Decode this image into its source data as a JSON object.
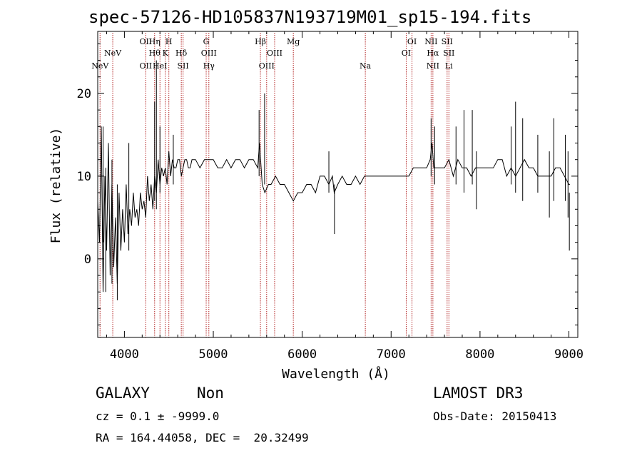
{
  "title": "spec-57126-HD105837N193719M01_sp15-194.fits",
  "info": {
    "class": "GALAXY",
    "subclass": "Non",
    "cz": "cz = 0.1 ± -9999.0",
    "radec": "RA = 164.44058, DEC =  20.32499",
    "survey": "LAMOST DR3",
    "obsdate": "Obs-Date: 20150413"
  },
  "colors": {
    "spectrum": "#000000",
    "line_marker": "#b22222",
    "axes": "#000000"
  },
  "chart_data": {
    "type": "line",
    "xlabel": "Wavelength (Å)",
    "ylabel": "Flux (relative)",
    "xlim": [
      3700,
      9100
    ],
    "ylim": [
      -9.5,
      27.5
    ],
    "xticks": [
      4000,
      5000,
      6000,
      7000,
      8000,
      9000
    ],
    "yticks": [
      0,
      10,
      20
    ],
    "grid": false,
    "series": [
      {
        "values_x": [
          3700,
          3720,
          3740,
          3760,
          3780,
          3800,
          3820,
          3840,
          3860,
          3880,
          3900,
          3920,
          3940,
          3960,
          3980,
          4000,
          4020,
          4040,
          4060,
          4080,
          4100,
          4120,
          4140,
          4160,
          4180,
          4200,
          4220,
          4240,
          4260,
          4280,
          4300,
          4320,
          4340,
          4360,
          4380,
          4400,
          4420,
          4440,
          4460,
          4480,
          4500,
          4520,
          4540,
          4560,
          4580,
          4600,
          4620,
          4640,
          4660,
          4680,
          4700,
          4720,
          4740,
          4760,
          4780,
          4800,
          4850,
          4900,
          4950,
          5000,
          5050,
          5100,
          5150,
          5200,
          5250,
          5300,
          5350,
          5400,
          5450,
          5500,
          5520,
          5550,
          5580,
          5620,
          5650,
          5700,
          5750,
          5800,
          5850,
          5900,
          5950,
          6000,
          6050,
          6100,
          6150,
          6200,
          6250,
          6300,
          6340,
          6360,
          6400,
          6450,
          6500,
          6550,
          6600,
          6650,
          6700,
          6750,
          6800,
          6850,
          6900,
          6950,
          7000,
          7050,
          7100,
          7150,
          7200,
          7250,
          7300,
          7350,
          7400,
          7440,
          7460,
          7480,
          7500,
          7550,
          7600,
          7650,
          7700,
          7750,
          7800,
          7850,
          7900,
          7950,
          8000,
          8050,
          8100,
          8150,
          8200,
          8250,
          8300,
          8350,
          8400,
          8450,
          8500,
          8550,
          8600,
          8650,
          8700,
          8750,
          8800,
          8850,
          8900,
          8950,
          9000,
          9010
        ],
        "values_y": [
          7,
          2,
          16,
          -4,
          10,
          1,
          14,
          -2,
          9,
          -1,
          5,
          -3,
          8,
          1,
          6,
          2,
          9,
          3,
          6,
          4,
          8,
          5,
          6,
          4,
          8,
          6,
          7,
          5,
          10,
          7,
          9,
          6,
          10,
          8,
          12,
          9,
          11,
          10,
          11,
          9,
          13,
          10,
          12,
          11,
          11,
          12,
          12,
          10,
          11,
          12,
          12,
          11,
          11,
          12,
          12,
          12,
          11,
          12,
          12,
          12,
          11,
          11,
          12,
          11,
          12,
          12,
          11,
          12,
          12,
          11,
          14,
          9,
          8,
          9,
          9,
          10,
          9,
          9,
          8,
          7,
          8,
          8,
          9,
          9,
          8,
          10,
          10,
          9,
          10,
          8,
          9,
          10,
          9,
          9,
          10,
          9,
          10,
          10,
          10,
          10,
          10,
          10,
          10,
          10,
          10,
          10,
          10,
          11,
          11,
          11,
          11,
          12,
          14,
          11,
          11,
          11,
          11,
          12,
          10,
          12,
          11,
          11,
          10,
          11,
          11,
          11,
          11,
          11,
          12,
          12,
          10,
          11,
          10,
          11,
          12,
          11,
          11,
          10,
          10,
          10,
          10,
          11,
          11,
          10,
          9,
          9
        ]
      }
    ],
    "spike_lines": [
      {
        "x": 3760,
        "y0": 2,
        "y1": 16
      },
      {
        "x": 3790,
        "y0": -4,
        "y1": 11
      },
      {
        "x": 3860,
        "y0": -3,
        "y1": 12
      },
      {
        "x": 3920,
        "y0": -5,
        "y1": 9
      },
      {
        "x": 4050,
        "y0": 1,
        "y1": 14
      },
      {
        "x": 4340,
        "y0": 7,
        "y1": 19
      },
      {
        "x": 4360,
        "y0": 6,
        "y1": 24
      },
      {
        "x": 4400,
        "y0": 8,
        "y1": 16
      },
      {
        "x": 4550,
        "y0": 9,
        "y1": 15
      },
      {
        "x": 5515,
        "y0": 10,
        "y1": 18
      },
      {
        "x": 5577,
        "y0": 9,
        "y1": 20
      },
      {
        "x": 6300,
        "y0": 8,
        "y1": 13
      },
      {
        "x": 6363,
        "y0": 3,
        "y1": 9
      },
      {
        "x": 7450,
        "y0": 10,
        "y1": 17
      },
      {
        "x": 7490,
        "y0": 9,
        "y1": 16
      },
      {
        "x": 7730,
        "y0": 9,
        "y1": 16
      },
      {
        "x": 7820,
        "y0": 8,
        "y1": 18
      },
      {
        "x": 7913,
        "y0": 9,
        "y1": 18
      },
      {
        "x": 7960,
        "y0": 6,
        "y1": 13
      },
      {
        "x": 8350,
        "y0": 9,
        "y1": 16
      },
      {
        "x": 8400,
        "y0": 8,
        "y1": 19
      },
      {
        "x": 8480,
        "y0": 7,
        "y1": 17
      },
      {
        "x": 8650,
        "y0": 8,
        "y1": 15
      },
      {
        "x": 8780,
        "y0": 5,
        "y1": 13
      },
      {
        "x": 8830,
        "y0": 7,
        "y1": 17
      },
      {
        "x": 8960,
        "y0": 7,
        "y1": 15
      },
      {
        "x": 8990,
        "y0": 5,
        "y1": 13
      },
      {
        "x": 9005,
        "y0": 1,
        "y1": 8
      }
    ],
    "line_markers": [
      {
        "x": 3726,
        "label": "NeV",
        "row": 3
      },
      {
        "x": 3869,
        "label": "NeV",
        "row": 2
      },
      {
        "x": 4240,
        "label": "OII",
        "row": 1
      },
      {
        "x": 4240,
        "label": "OII",
        "row": 3
      },
      {
        "x": 4340,
        "label": "Hη",
        "row": 1
      },
      {
        "x": 4340,
        "label": "Hθ",
        "row": 2
      },
      {
        "x": 4400,
        "label": "HeI",
        "row": 3
      },
      {
        "x": 4460,
        "label": "K",
        "row": 2
      },
      {
        "x": 4500,
        "label": "H",
        "row": 1
      },
      {
        "x": 4640,
        "label": "Hδ",
        "row": 2
      },
      {
        "x": 4660,
        "label": "SII",
        "row": 3
      },
      {
        "x": 4920,
        "label": "G",
        "row": 1
      },
      {
        "x": 4950,
        "label": "OIII",
        "row": 2
      },
      {
        "x": 4950,
        "label": "Hγ",
        "row": 3
      },
      {
        "x": 5530,
        "label": "Hβ",
        "row": 1
      },
      {
        "x": 5600,
        "label": "OIII",
        "row": 3
      },
      {
        "x": 5690,
        "label": "OIII",
        "row": 2
      },
      {
        "x": 5900,
        "label": "Mg",
        "row": 1
      },
      {
        "x": 6710,
        "label": "Na",
        "row": 3
      },
      {
        "x": 7170,
        "label": "OI",
        "row": 2
      },
      {
        "x": 7235,
        "label": "OI",
        "row": 1
      },
      {
        "x": 7450,
        "label": "NII",
        "row": 1
      },
      {
        "x": 7470,
        "label": "Hα",
        "row": 2
      },
      {
        "x": 7470,
        "label": "NII",
        "row": 3
      },
      {
        "x": 7630,
        "label": "SII",
        "row": 1
      },
      {
        "x": 7650,
        "label": "SII",
        "row": 2
      },
      {
        "x": 7650,
        "label": "Li",
        "row": 3
      }
    ]
  }
}
